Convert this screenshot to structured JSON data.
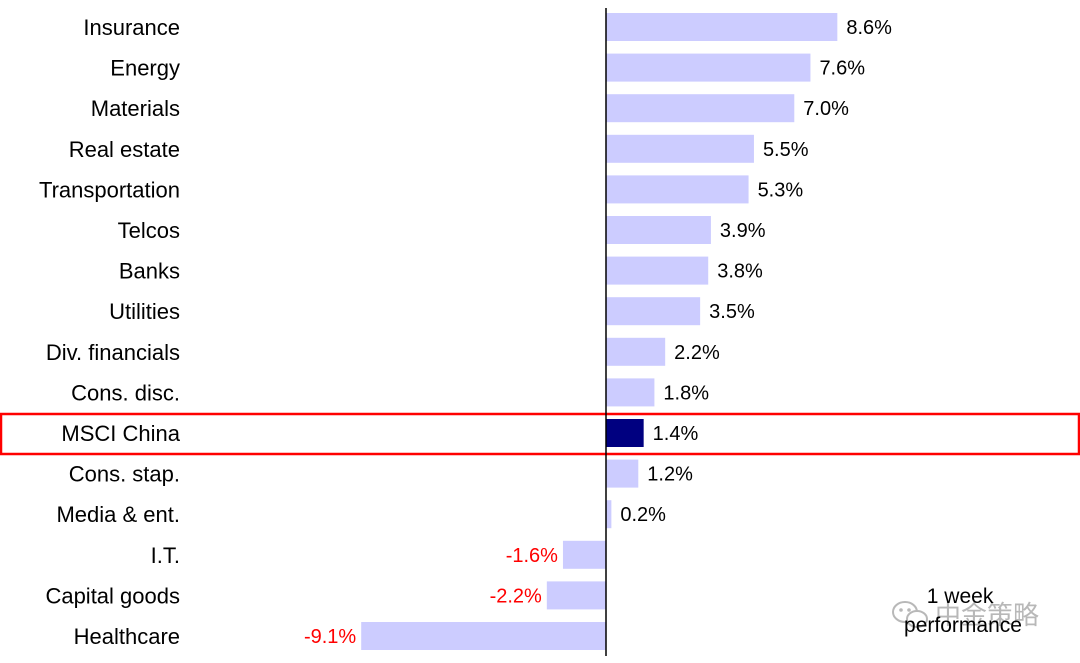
{
  "chart_data": {
    "type": "bar",
    "orientation": "horizontal",
    "categories": [
      "Insurance",
      "Energy",
      "Materials",
      "Real estate",
      "Transportation",
      "Telcos",
      "Banks",
      "Utilities",
      "Div. financials",
      "Cons. disc.",
      "MSCI China",
      "Cons. stap.",
      "Media & ent.",
      "I.T.",
      "Capital goods",
      "Healthcare"
    ],
    "values": [
      8.6,
      7.6,
      7.0,
      5.5,
      5.3,
      3.9,
      3.8,
      3.5,
      2.2,
      1.8,
      1.4,
      1.2,
      0.2,
      -1.6,
      -2.2,
      -9.1
    ],
    "value_labels": [
      "8.6%",
      "7.6%",
      "7.0%",
      "5.5%",
      "5.3%",
      "3.9%",
      "3.8%",
      "3.5%",
      "2.2%",
      "1.8%",
      "1.4%",
      "1.2%",
      "0.2%",
      "-1.6%",
      "-2.2%",
      "-9.1%"
    ],
    "highlight_category": "MSCI China",
    "colors": {
      "bar": "#ccccff",
      "highlight_bar": "#000080",
      "negative_label": "#ff0000",
      "positive_label": "#000000",
      "highlight_box": "#ff0000",
      "axis": "#000000"
    },
    "annotation": "1 week performance",
    "grid": false,
    "legend": "none"
  },
  "watermark": {
    "icon": "wechat-icon",
    "text": "中金策略"
  }
}
